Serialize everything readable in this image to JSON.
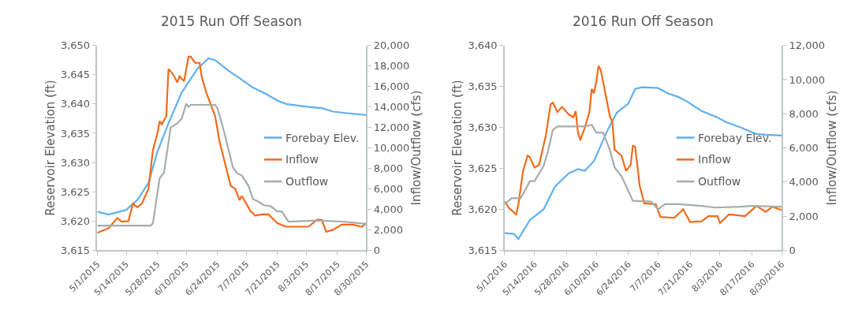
{
  "chart_data": [
    {
      "type": "line",
      "title": "2015 Run Off Season",
      "ylabel": "Reservoir Elevation (ft)",
      "y2label": "Inflow/Outflow (cfs)",
      "legend": "right",
      "xlim": [
        "2015-05-01",
        "2015-08-30"
      ],
      "xticks": [
        {
          "value": "2015-05-01",
          "label": "5/1/2015"
        },
        {
          "value": "2015-05-14",
          "label": "5/14/2015"
        },
        {
          "value": "2015-05-28",
          "label": "5/28/2015"
        },
        {
          "value": "2015-06-10",
          "label": "6/10/2015"
        },
        {
          "value": "2015-06-24",
          "label": "6/24/2015"
        },
        {
          "value": "2015-07-07",
          "label": "7/7/2015"
        },
        {
          "value": "2015-07-21",
          "label": "7/21/2015"
        },
        {
          "value": "2015-08-03",
          "label": "8/3/2015"
        },
        {
          "value": "2015-08-17",
          "label": "8/17/2015"
        },
        {
          "value": "2015-08-30",
          "label": "8/30/2015"
        }
      ],
      "ylim": [
        3615,
        3650
      ],
      "yticks": [
        {
          "value": 3615,
          "label": "3,615"
        },
        {
          "value": 3620,
          "label": "3,620"
        },
        {
          "value": 3625,
          "label": "3,625"
        },
        {
          "value": 3630,
          "label": "3,630"
        },
        {
          "value": 3635,
          "label": "3,635"
        },
        {
          "value": 3640,
          "label": "3,640"
        },
        {
          "value": 3645,
          "label": "3,645"
        },
        {
          "value": 3650,
          "label": "3,650"
        }
      ],
      "y2lim": [
        0,
        20000
      ],
      "y2ticks": [
        0,
        {
          "value": 2000,
          "label": "2,000"
        },
        {
          "value": 4000,
          "label": "4,000"
        },
        {
          "value": 6000,
          "label": "6,000"
        },
        {
          "value": 8000,
          "label": "8,000"
        },
        {
          "value": 10000,
          "label": "10,000"
        },
        {
          "value": 12000,
          "label": "12,000"
        },
        {
          "value": 14000,
          "label": "14,000"
        },
        {
          "value": 16000,
          "label": "16,000"
        },
        {
          "value": 18000,
          "label": "18,000"
        },
        {
          "value": 20000,
          "label": "20,000"
        }
      ],
      "series": [
        {
          "name": "Forebay Elev.",
          "color": "#5fb0f0",
          "x": [
            "2015-05-01",
            "2015-05-06",
            "2015-05-14",
            "2015-05-19",
            "2015-05-24",
            "2015-05-28",
            "2015-06-02",
            "2015-06-08",
            "2015-06-15",
            "2015-06-20",
            "2015-06-23",
            "2015-06-29",
            "2015-07-04",
            "2015-07-10",
            "2015-07-16",
            "2015-07-21",
            "2015-07-25",
            "2015-08-04",
            "2015-08-10",
            "2015-08-15",
            "2015-08-22",
            "2015-08-30"
          ],
          "values": [
            3621.6,
            3621.1,
            3621.9,
            3623.6,
            3626.5,
            3631.8,
            3636.7,
            3642,
            3646,
            3647.8,
            3647.5,
            3645.7,
            3644.4,
            3642.8,
            3641.7,
            3640.6,
            3640,
            3639.5,
            3639.3,
            3638.7,
            3638.4,
            3638.1
          ]
        },
        {
          "name": "Inflow",
          "color": "#f26a1b",
          "axis": "y2",
          "x": [
            "2015-05-01",
            "2015-05-06",
            "2015-05-10",
            "2015-05-12",
            "2015-05-15",
            "2015-05-17",
            "2015-05-19",
            "2015-05-21",
            "2015-05-24",
            "2015-05-26",
            "2015-05-28",
            "2015-05-29",
            "2015-05-30",
            "2015-06-01",
            "2015-06-02",
            "2015-06-04",
            "2015-06-06",
            "2015-06-07",
            "2015-06-09",
            "2015-06-11",
            "2015-06-12",
            "2015-06-14",
            "2015-06-16",
            "2015-06-17",
            "2015-06-19",
            "2015-06-23",
            "2015-06-25",
            "2015-06-30",
            "2015-07-02",
            "2015-07-04",
            "2015-07-05",
            "2015-07-09",
            "2015-07-11",
            "2015-07-14",
            "2015-07-17",
            "2015-07-21",
            "2015-07-25",
            "2015-07-30",
            "2015-08-04",
            "2015-08-08",
            "2015-08-10",
            "2015-08-12",
            "2015-08-15",
            "2015-08-19",
            "2015-08-24",
            "2015-08-28",
            "2015-08-30"
          ],
          "values": [
            1700,
            2150,
            3150,
            2800,
            2850,
            4550,
            4200,
            4550,
            6000,
            9800,
            11400,
            12600,
            12300,
            13100,
            17700,
            17200,
            16400,
            17000,
            16500,
            18900,
            18900,
            18300,
            18300,
            16900,
            15400,
            13100,
            10600,
            6300,
            6000,
            4900,
            5300,
            3800,
            3400,
            3500,
            3500,
            2650,
            2300,
            2300,
            2300,
            3000,
            2950,
            1800,
            2000,
            2500,
            2500,
            2300,
            2650
          ]
        },
        {
          "name": "Outflow",
          "color": "#a5adaa",
          "axis": "y2",
          "x": [
            "2015-05-01",
            "2015-05-25",
            "2015-05-26",
            "2015-05-29",
            "2015-05-31",
            "2015-06-03",
            "2015-06-06",
            "2015-06-08",
            "2015-06-10",
            "2015-06-11",
            "2015-06-12",
            "2015-06-23",
            "2015-06-24",
            "2015-06-27",
            "2015-07-01",
            "2015-07-03",
            "2015-07-05",
            "2015-07-08",
            "2015-07-10",
            "2015-07-12",
            "2015-07-15",
            "2015-07-18",
            "2015-07-21",
            "2015-07-23",
            "2015-07-26",
            "2015-08-08",
            "2015-08-19",
            "2015-08-29",
            "2015-08-30"
          ],
          "values": [
            2400,
            2400,
            2650,
            7000,
            7600,
            12000,
            12400,
            12900,
            14300,
            14000,
            14200,
            14200,
            13900,
            11600,
            8100,
            7500,
            7300,
            6300,
            5000,
            4800,
            4400,
            4300,
            3800,
            3800,
            2800,
            2900,
            2800,
            2600,
            2500
          ]
        }
      ]
    },
    {
      "type": "line",
      "title": "2016 Run Off Season",
      "ylabel": "Reservoir Elevation (ft)",
      "y2label": "Inflow/Outflow (cfs)",
      "legend": "right",
      "xlim": [
        "2016-05-01",
        "2016-08-30"
      ],
      "xticks": [
        {
          "value": "2016-05-01",
          "label": "5/1/2016"
        },
        {
          "value": "2016-05-14",
          "label": "5/14/2016"
        },
        {
          "value": "2016-05-28",
          "label": "5/28/2016"
        },
        {
          "value": "2016-06-10",
          "label": "6/10/2016"
        },
        {
          "value": "2016-06-24",
          "label": "6/24/2016"
        },
        {
          "value": "2016-07-07",
          "label": "7/7/2016"
        },
        {
          "value": "2016-07-21",
          "label": "7/21/2016"
        },
        {
          "value": "2016-08-03",
          "label": "8/3/2016"
        },
        {
          "value": "2016-08-17",
          "label": "8/17/2016"
        },
        {
          "value": "2016-08-30",
          "label": "8/30/2016"
        }
      ],
      "ylim": [
        3615,
        3640
      ],
      "yticks": [
        {
          "value": 3615,
          "label": "3,615"
        },
        {
          "value": 3620,
          "label": "3,620"
        },
        {
          "value": 3625,
          "label": "3,625"
        },
        {
          "value": 3630,
          "label": "3,630"
        },
        {
          "value": 3635,
          "label": "3,635"
        },
        {
          "value": 3640,
          "label": "3,640"
        }
      ],
      "y2lim": [
        0,
        12000
      ],
      "y2ticks": [
        0,
        {
          "value": 2000,
          "label": "2,000"
        },
        {
          "value": 4000,
          "label": "4,000"
        },
        {
          "value": 6000,
          "label": "6,000"
        },
        {
          "value": 8000,
          "label": "8,000"
        },
        {
          "value": 10000,
          "label": "10,000"
        },
        {
          "value": 12000,
          "label": "12,000"
        }
      ],
      "series": [
        {
          "name": "Forebay Elev.",
          "color": "#5fb0f0",
          "x": [
            "2016-05-01",
            "2016-05-05",
            "2016-05-07",
            "2016-05-12",
            "2016-05-18",
            "2016-05-23",
            "2016-05-29",
            "2016-06-02",
            "2016-06-05",
            "2016-06-09",
            "2016-06-12",
            "2016-06-15",
            "2016-06-19",
            "2016-06-24",
            "2016-06-27",
            "2016-06-30",
            "2016-07-07",
            "2016-07-11",
            "2016-07-16",
            "2016-07-20",
            "2016-07-26",
            "2016-08-02",
            "2016-08-06",
            "2016-08-12",
            "2016-08-17",
            "2016-08-19",
            "2016-08-23",
            "2016-08-30"
          ],
          "values": [
            3617.1,
            3617.0,
            3616.4,
            3618.7,
            3620,
            3622.8,
            3624.4,
            3624.9,
            3624.7,
            3625.9,
            3627.8,
            3629.7,
            3631.8,
            3632.9,
            3634.7,
            3634.9,
            3634.8,
            3634.2,
            3633.7,
            3633.1,
            3632,
            3631.2,
            3630.6,
            3630,
            3629.4,
            3629.2,
            3629.1,
            3629.0
          ]
        },
        {
          "name": "Inflow",
          "color": "#f26a1b",
          "axis": "y2",
          "x": [
            "2016-05-01",
            "2016-05-03",
            "2016-05-06",
            "2016-05-07",
            "2016-05-09",
            "2016-05-11",
            "2016-05-12",
            "2016-05-14",
            "2016-05-16",
            "2016-05-19",
            "2016-05-21",
            "2016-05-22",
            "2016-05-24",
            "2016-05-26",
            "2016-05-29",
            "2016-05-31",
            "2016-06-01",
            "2016-06-02",
            "2016-06-03",
            "2016-06-05",
            "2016-06-07",
            "2016-06-08",
            "2016-06-09",
            "2016-06-10",
            "2016-06-11",
            "2016-06-12",
            "2016-06-16",
            "2016-06-17",
            "2016-06-18",
            "2016-06-21",
            "2016-06-23",
            "2016-06-25",
            "2016-06-26",
            "2016-06-27",
            "2016-06-29",
            "2016-07-01",
            "2016-07-06",
            "2016-07-08",
            "2016-07-14",
            "2016-07-18",
            "2016-07-21",
            "2016-07-26",
            "2016-07-29",
            "2016-08-02",
            "2016-08-03",
            "2016-08-07",
            "2016-08-14",
            "2016-08-19",
            "2016-08-23",
            "2016-08-26",
            "2016-08-30"
          ],
          "values": [
            2850,
            2450,
            2100,
            2700,
            4650,
            5550,
            5450,
            4850,
            5000,
            6750,
            8550,
            8650,
            8100,
            8400,
            7950,
            7800,
            8150,
            6900,
            6450,
            7200,
            8100,
            9450,
            9200,
            9900,
            10800,
            10550,
            7800,
            7550,
            5900,
            5550,
            4650,
            5000,
            6150,
            6050,
            3750,
            2750,
            2700,
            1950,
            1900,
            2400,
            1650,
            1700,
            2000,
            2000,
            1600,
            2100,
            2000,
            2600,
            2250,
            2550,
            2350
          ]
        },
        {
          "name": "Outflow",
          "color": "#a5adaa",
          "axis": "y2",
          "x": [
            "2016-05-01",
            "2016-05-04",
            "2016-05-08",
            "2016-05-12",
            "2016-05-14",
            "2016-05-18",
            "2016-05-20",
            "2016-05-22",
            "2016-05-24",
            "2016-06-01",
            "2016-06-05",
            "2016-06-08",
            "2016-06-10",
            "2016-06-13",
            "2016-06-16",
            "2016-06-18",
            "2016-06-21",
            "2016-06-26",
            "2016-07-04",
            "2016-07-07",
            "2016-07-10",
            "2016-07-16",
            "2016-07-26",
            "2016-08-01",
            "2016-08-12",
            "2016-08-17",
            "2016-08-29",
            "2016-08-30"
          ],
          "values": [
            2700,
            3050,
            3050,
            4050,
            4050,
            4950,
            5850,
            7050,
            7250,
            7250,
            7250,
            7350,
            6900,
            6900,
            5850,
            4850,
            4350,
            2900,
            2850,
            2400,
            2700,
            2700,
            2600,
            2500,
            2550,
            2600,
            2550,
            2550
          ]
        }
      ]
    }
  ]
}
